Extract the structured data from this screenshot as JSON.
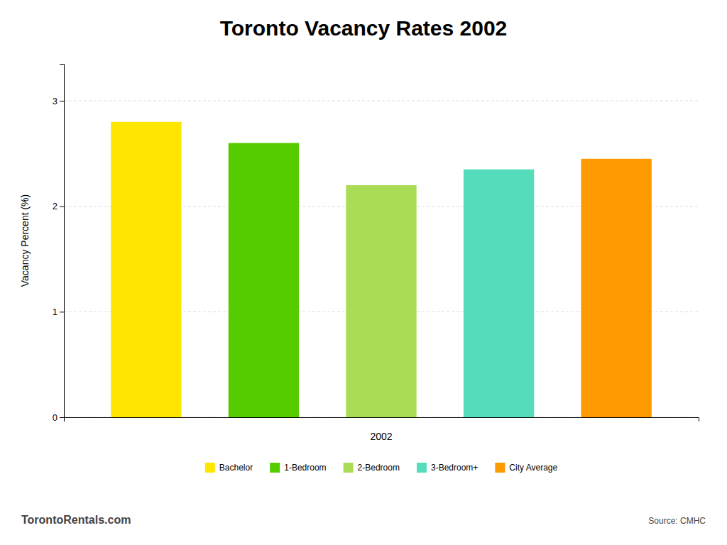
{
  "chart_data": {
    "type": "bar",
    "title": "Toronto Vacancy Rates 2002",
    "categories": [
      "Bachelor",
      "1-Bedroom",
      "2-Bedroom",
      "3-Bedroom+",
      "City Average"
    ],
    "values": [
      2.8,
      2.6,
      2.2,
      2.35,
      2.45
    ],
    "colors": [
      "#FFE600",
      "#55CC00",
      "#AADD55",
      "#55DDBB",
      "#FF9900"
    ],
    "xlabel": "2002",
    "ylabel": "Vacancy Percent (%)",
    "ylim": [
      0,
      3.35
    ],
    "yticks": [
      0,
      1,
      2,
      3
    ],
    "grid": true,
    "legend": "bottom",
    "tick_labels": "y",
    "annotations": [
      "TorontoRentals.com",
      "Source: CMHC"
    ]
  }
}
